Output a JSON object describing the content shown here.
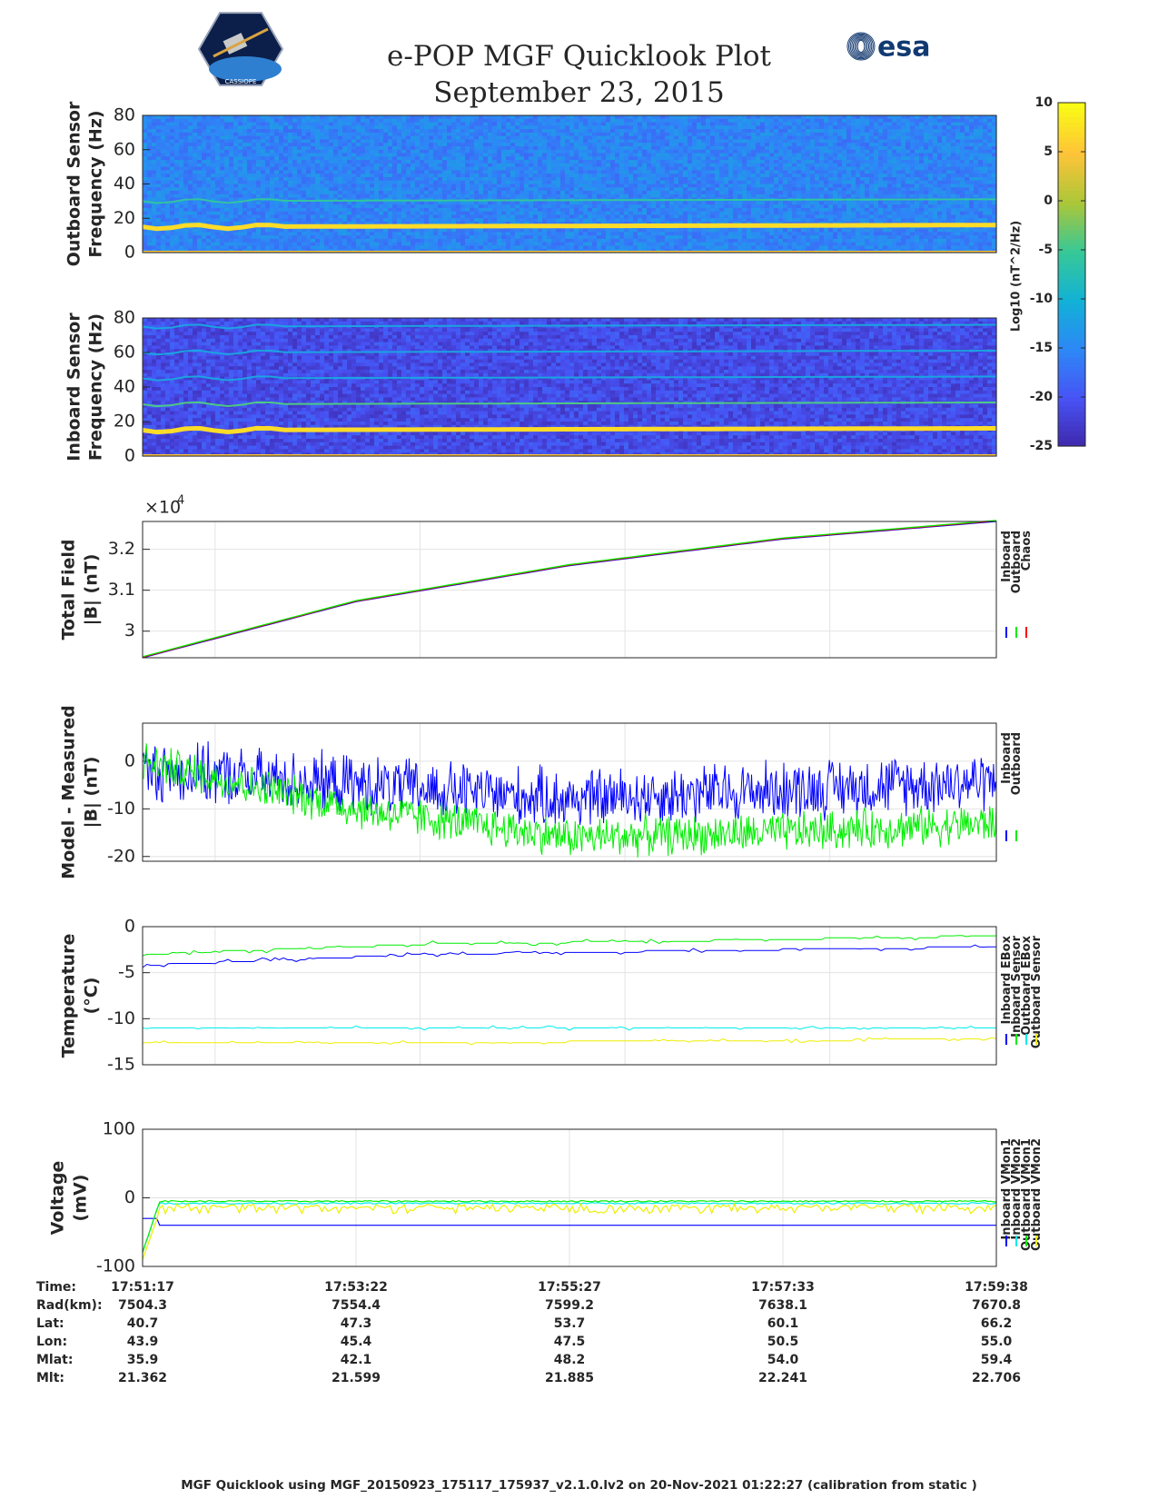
{
  "title": "e-POP MGF Quicklook Plot",
  "date": "September 23, 2015",
  "logos": {
    "cassiope": "CASSIOPE",
    "esa": "esa"
  },
  "colors": {
    "inboard": "#0000ff",
    "outboard": "#00ee00",
    "chaos": "#ff0000",
    "cyan": "#00eeee",
    "yellow": "#eeee00"
  },
  "colorbar": {
    "label": "Log10 (nT^2/Hz)",
    "ticks": [
      10,
      5,
      0,
      -5,
      -10,
      -15,
      -20,
      -25
    ],
    "range": [
      -25,
      10
    ]
  },
  "chart_data": [
    {
      "type": "heatmap",
      "ylabel": [
        "Outboard Sensor",
        "Frequency (Hz)"
      ],
      "yticks": [
        0,
        20,
        40,
        60,
        80
      ],
      "ylim": [
        0,
        80
      ],
      "lines_hz": [
        15,
        30
      ],
      "bright_line_hz": 15
    },
    {
      "type": "heatmap",
      "ylabel": [
        "Inboard Sensor",
        "Frequency (Hz)"
      ],
      "yticks": [
        0,
        20,
        40,
        60,
        80
      ],
      "ylim": [
        0,
        80
      ],
      "lines_hz": [
        15,
        30,
        45,
        60,
        75
      ],
      "bright_line_hz": 15
    },
    {
      "type": "line",
      "ylabel": [
        "Total Field",
        "|B| (nT)"
      ],
      "yticks": [
        3,
        3.1,
        3.2
      ],
      "exponent": "×10^4",
      "ylim": [
        2.935,
        3.268
      ],
      "legend": [
        "Inboard",
        "Outboard",
        "Chaos"
      ],
      "x": [
        0,
        0.25,
        0.5,
        0.75,
        1
      ],
      "values": [
        2.935,
        3.072,
        3.16,
        3.225,
        3.268
      ]
    },
    {
      "type": "line",
      "ylabel": [
        "Model - Measured",
        "|B| (nT)"
      ],
      "yticks": [
        0,
        -10,
        -20
      ],
      "ylim": [
        -21,
        8
      ],
      "legend": [
        "Inboard",
        "Outboard"
      ],
      "series": [
        {
          "name": "Inboard",
          "mean": [
            -2,
            -5,
            -8,
            -6,
            -4
          ],
          "amp": 6
        },
        {
          "name": "Outboard",
          "mean": [
            0,
            -10,
            -16,
            -15,
            -13
          ],
          "amp": 4
        }
      ]
    },
    {
      "type": "line",
      "ylabel": [
        "Temperature",
        "(°C)"
      ],
      "yticks": [
        0,
        -5,
        -10,
        -15
      ],
      "ylim": [
        -15,
        0
      ],
      "legend": [
        "Inboard EBox",
        "Inboard Sensor",
        "Outboard EBox",
        "Outboard Sensor"
      ],
      "series": [
        {
          "name": "Inboard EBox",
          "values": [
            -4.2,
            -3.0,
            -2.6,
            -2.2
          ]
        },
        {
          "name": "Inboard Sensor",
          "values": [
            -3.0,
            -1.9,
            -1.5,
            -1.0
          ]
        },
        {
          "name": "Outboard EBox",
          "values": [
            -11.1,
            -11.1,
            -11.1,
            -11.0
          ]
        },
        {
          "name": "Outboard Sensor",
          "values": [
            -12.7,
            -12.6,
            -12.4,
            -12.2
          ]
        }
      ]
    },
    {
      "type": "line",
      "ylabel": [
        "Voltage",
        "(mV)"
      ],
      "yticks": [
        100,
        0,
        -100
      ],
      "ylim": [
        -100,
        100
      ],
      "legend": [
        "Inboard VMon1",
        "Inboard VMon2",
        "Outboard VMon1",
        "Outboard VMon2"
      ],
      "series": [
        {
          "name": "Inboard VMon1",
          "values": [
            -40,
            -40
          ]
        },
        {
          "name": "Inboard VMon2",
          "values": [
            -8,
            -8
          ]
        },
        {
          "name": "Outboard VMon1",
          "values": [
            -5,
            -5
          ]
        },
        {
          "name": "Outboard VMon2",
          "values": [
            -15,
            -15
          ]
        }
      ]
    }
  ],
  "ephemeris": {
    "labels": [
      "Time:",
      "Rad(km):",
      "Lat:",
      "Lon:",
      "Mlat:",
      "Mlt:"
    ],
    "columns": [
      [
        "17:51:17",
        "7504.3",
        "40.7",
        "43.9",
        "35.9",
        "21.362"
      ],
      [
        "17:53:22",
        "7554.4",
        "47.3",
        "45.4",
        "42.1",
        "21.599"
      ],
      [
        "17:55:27",
        "7599.2",
        "53.7",
        "47.5",
        "48.2",
        "21.885"
      ],
      [
        "17:57:33",
        "7638.1",
        "60.1",
        "50.5",
        "54.0",
        "22.241"
      ],
      [
        "17:59:38",
        "7670.8",
        "66.2",
        "55.0",
        "59.4",
        "22.706"
      ]
    ]
  },
  "footer": "MGF Quicklook using MGF_20150923_175117_175937_v2.1.0.lv2 on 20-Nov-2021 01:22:27 (calibration from static )"
}
